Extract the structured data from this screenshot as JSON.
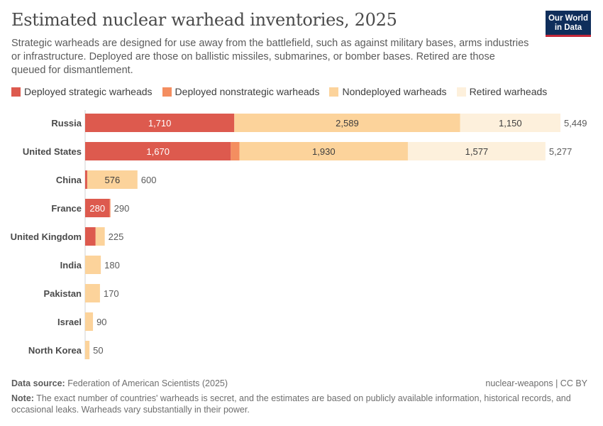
{
  "title": "Estimated nuclear warhead inventories, 2025",
  "subtitle": "Strategic warheads are designed for use away from the battlefield, such as against military bases, arms industries or infrastructure. Deployed are those on ballistic missiles, submarines, or bomber bases. Retired are those queued for dismantlement.",
  "logo": {
    "line1": "Our World",
    "line2": "in Data"
  },
  "footer": {
    "source_label": "Data source:",
    "source_text": "Federation of American Scientists (2025)",
    "ref": "nuclear-weapons | CC BY",
    "note_label": "Note:",
    "note_text": "The exact number of countries' warheads is secret, and the estimates are based on publicly available information, historical records, and occasional leaks. Warheads vary substantially in their power."
  },
  "colors": {
    "deployed_strategic": "#dd5a4e",
    "deployed_nonstrategic": "#f48e60",
    "nondeployed": "#fcd39b",
    "retired": "#fdf0dc",
    "text_dark": "#3d3d3d",
    "text_light": "#ffffff"
  },
  "chart_data": {
    "type": "bar",
    "orientation": "horizontal",
    "stacked": true,
    "categories": [
      "Russia",
      "United States",
      "China",
      "France",
      "United Kingdom",
      "India",
      "Pakistan",
      "Israel",
      "North Korea"
    ],
    "series": [
      {
        "name": "Deployed strategic warheads",
        "color": "#dd5a4e",
        "values": [
          1710,
          1670,
          24,
          280,
          120,
          0,
          0,
          0,
          0
        ],
        "labels": [
          "1,710",
          "1,670",
          "",
          "280",
          "",
          "",
          "",
          "",
          ""
        ]
      },
      {
        "name": "Deployed nonstrategic warheads",
        "color": "#f48e60",
        "values": [
          0,
          100,
          0,
          10,
          0,
          0,
          0,
          0,
          0
        ],
        "labels": [
          "",
          "",
          "",
          "",
          "",
          "",
          "",
          "",
          ""
        ]
      },
      {
        "name": "Nondeployed warheads",
        "color": "#fcd39b",
        "values": [
          2589,
          1930,
          576,
          0,
          105,
          180,
          170,
          90,
          50
        ],
        "labels": [
          "2,589",
          "1,930",
          "576",
          "",
          "",
          "",
          "",
          "",
          ""
        ]
      },
      {
        "name": "Retired warheads",
        "color": "#fdf0dc",
        "values": [
          1150,
          1577,
          0,
          0,
          0,
          0,
          0,
          0,
          0
        ],
        "labels": [
          "1,150",
          "1,577",
          "",
          "",
          "",
          "",
          "",
          "",
          ""
        ]
      }
    ],
    "totals": [
      5449,
      5277,
      600,
      290,
      225,
      180,
      170,
      90,
      50
    ],
    "total_labels": [
      "5,449",
      "5,277",
      "600",
      "290",
      "225",
      "180",
      "170",
      "90",
      "50"
    ],
    "xlim": [
      0,
      5449
    ],
    "legend_position": "top"
  }
}
